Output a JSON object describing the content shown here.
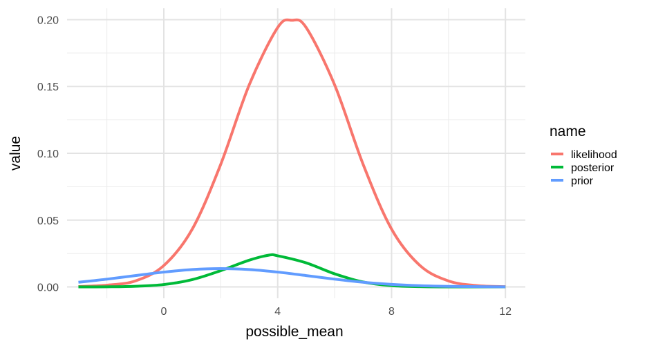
{
  "chart_data": {
    "type": "line",
    "xlabel": "possible_mean",
    "ylabel": "value",
    "xlim": [
      -3.4,
      12.7
    ],
    "ylim": [
      -0.0085,
      0.2085
    ],
    "x_ticks": [
      0,
      4,
      8,
      12
    ],
    "x_minor": [
      -2,
      2,
      6,
      10
    ],
    "y_ticks": [
      0.0,
      0.05,
      0.1,
      0.15,
      0.2
    ],
    "y_tick_labels": [
      "0.00",
      "0.05",
      "0.10",
      "0.15",
      "0.20"
    ],
    "y_minor": [
      0.025,
      0.075,
      0.125,
      0.175
    ],
    "grid": true,
    "legend": {
      "title": "name",
      "position": "right",
      "entries": [
        {
          "label": "likelihood",
          "color": "#F8766D"
        },
        {
          "label": "posterior",
          "color": "#00BA38"
        },
        {
          "label": "prior",
          "color": "#619CFF"
        }
      ]
    },
    "series": [
      {
        "name": "likelihood",
        "color": "#F8766D",
        "x": [
          -3,
          -2,
          -1,
          0,
          1,
          2,
          3,
          4,
          4.5,
          5,
          6,
          7,
          8,
          9,
          10,
          11,
          12
        ],
        "y": [
          0.0003,
          0.0013,
          0.0045,
          0.016,
          0.0433,
          0.0918,
          0.1512,
          0.1941,
          0.1995,
          0.1941,
          0.1512,
          0.0918,
          0.0433,
          0.016,
          0.0045,
          0.001,
          0.0002
        ]
      },
      {
        "name": "posterior",
        "color": "#00BA38",
        "x": [
          -3,
          -2,
          -1,
          0,
          1,
          2,
          3,
          3.7,
          4,
          5,
          6,
          7,
          8,
          9,
          10,
          11,
          12
        ],
        "y": [
          0.0,
          0.0001,
          0.0005,
          0.0018,
          0.0055,
          0.0122,
          0.02,
          0.0238,
          0.0233,
          0.018,
          0.0098,
          0.0037,
          0.001,
          0.0002,
          0.0,
          0.0,
          0.0
        ]
      },
      {
        "name": "prior",
        "color": "#619CFF",
        "x": [
          -3,
          -2,
          -1,
          0,
          1,
          2,
          3,
          4,
          5,
          6,
          7,
          8,
          9,
          10,
          11,
          12
        ],
        "y": [
          0.0035,
          0.0058,
          0.0085,
          0.0111,
          0.013,
          0.0137,
          0.013,
          0.0111,
          0.0085,
          0.0058,
          0.0035,
          0.0019,
          0.0009,
          0.0004,
          0.0002,
          0.0001
        ]
      }
    ]
  }
}
